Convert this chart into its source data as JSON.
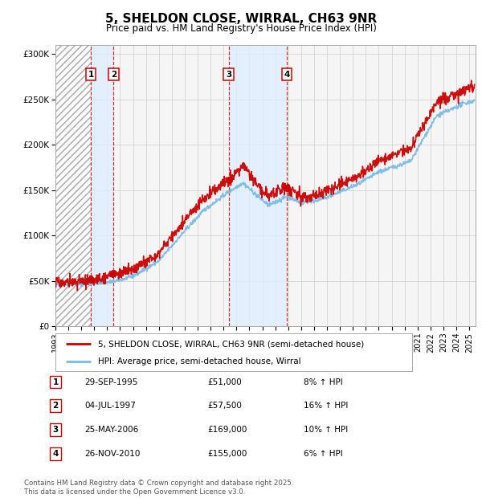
{
  "title": "5, SHELDON CLOSE, WIRRAL, CH63 9NR",
  "subtitle": "Price paid vs. HM Land Registry's House Price Index (HPI)",
  "ylabel_ticks": [
    "£0",
    "£50K",
    "£100K",
    "£150K",
    "£200K",
    "£250K",
    "£300K"
  ],
  "ytick_values": [
    0,
    50000,
    100000,
    150000,
    200000,
    250000,
    300000
  ],
  "ylim": [
    0,
    310000
  ],
  "xlim_start": 1993.0,
  "xlim_end": 2025.5,
  "hpi_color": "#7abbe8",
  "price_color": "#cc0000",
  "bg_color": "#ffffff",
  "plot_bg": "#f5f5f5",
  "shade_color": "#ddeeff",
  "grid_color": "#cccccc",
  "transactions": [
    {
      "num": 1,
      "date_str": "29-SEP-1995",
      "year": 1995.75,
      "price": 51000,
      "hpi_pct": "8%"
    },
    {
      "num": 2,
      "date_str": "04-JUL-1997",
      "year": 1997.5,
      "price": 57500,
      "hpi_pct": "16%"
    },
    {
      "num": 3,
      "date_str": "25-MAY-2006",
      "year": 2006.4,
      "price": 169000,
      "hpi_pct": "10%"
    },
    {
      "num": 4,
      "date_str": "26-NOV-2010",
      "year": 2010.9,
      "price": 155000,
      "hpi_pct": "6%"
    }
  ],
  "shade_ranges": [
    [
      1995.75,
      1997.5
    ],
    [
      2006.4,
      2010.9
    ]
  ],
  "hatch_end": 1995.75,
  "legend_entries": [
    "5, SHELDON CLOSE, WIRRAL, CH63 9NR (semi-detached house)",
    "HPI: Average price, semi-detached house, Wirral"
  ],
  "footer": "Contains HM Land Registry data © Crown copyright and database right 2025.\nThis data is licensed under the Open Government Licence v3.0.",
  "xtick_years": [
    1993,
    1994,
    1995,
    1996,
    1997,
    1998,
    1999,
    2000,
    2001,
    2002,
    2003,
    2004,
    2005,
    2006,
    2007,
    2008,
    2009,
    2010,
    2011,
    2012,
    2013,
    2014,
    2015,
    2016,
    2017,
    2018,
    2019,
    2020,
    2021,
    2022,
    2023,
    2024,
    2025
  ]
}
